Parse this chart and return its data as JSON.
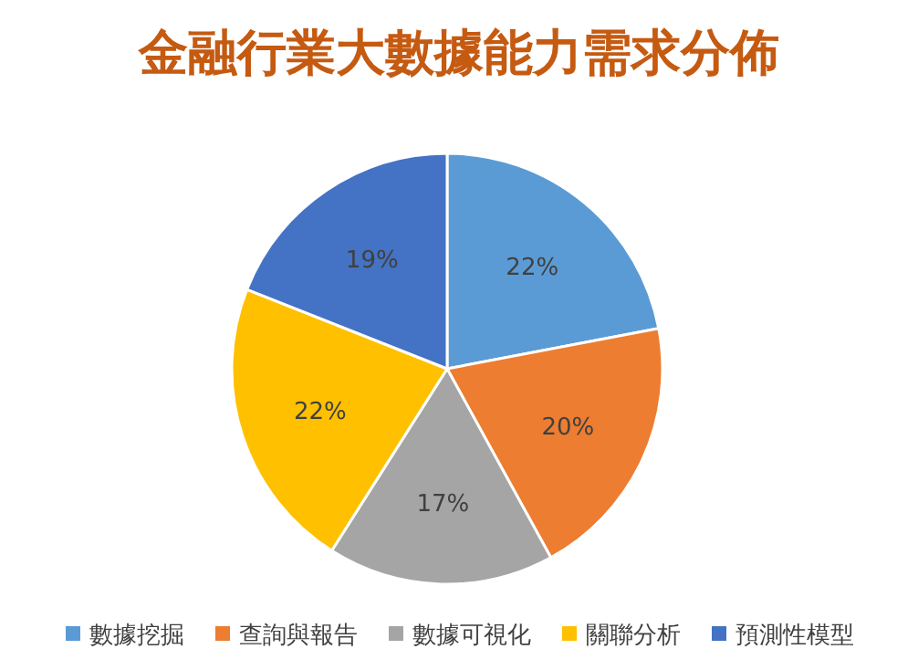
{
  "chart_data": {
    "type": "pie",
    "title": "金融行業大數據能力需求分佈",
    "categories": [
      "數據挖掘",
      "查詢與報告",
      "數據可視化",
      "關聯分析",
      "預測性模型"
    ],
    "values": [
      22,
      20,
      17,
      22,
      19
    ],
    "colors": [
      "#5b9bd5",
      "#ed7d31",
      "#a5a5a5",
      "#ffc000",
      "#4472c4"
    ],
    "value_labels": [
      "22%",
      "20%",
      "17%",
      "22%",
      "19%"
    ],
    "legend": "bottom"
  }
}
